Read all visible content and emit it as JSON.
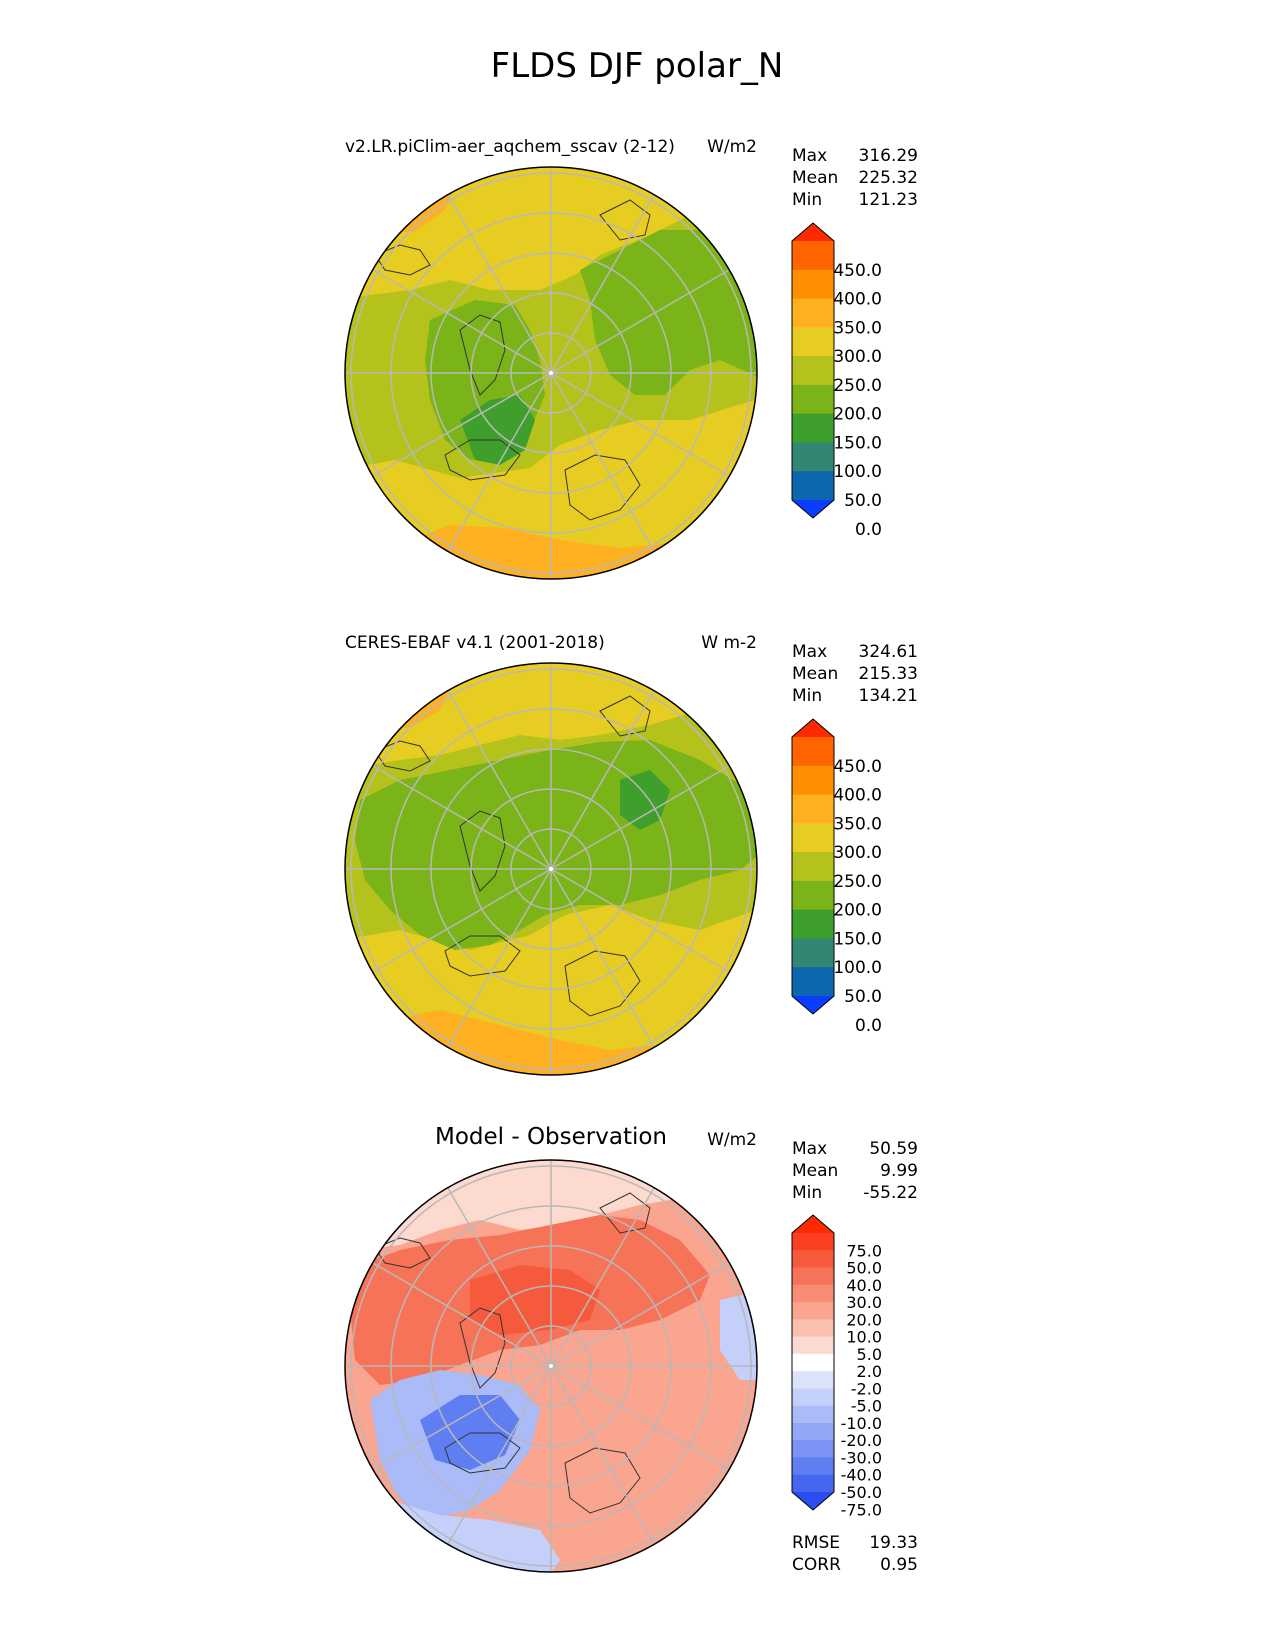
{
  "figure_title": "FLDS DJF polar_N",
  "panels": [
    {
      "id": "model",
      "left_title": "v2.LR.piClim-aer_aqchem_sscav (2-12)",
      "right_title": "W/m2",
      "center_title": "",
      "stats": [
        {
          "label": "Max",
          "value": "316.29"
        },
        {
          "label": "Mean",
          "value": "225.32"
        },
        {
          "label": "Min",
          "value": "121.23"
        }
      ],
      "colorbar": {
        "ticks": [
          "450.0",
          "400.0",
          "350.0",
          "300.0",
          "250.0",
          "200.0",
          "150.0",
          "100.0",
          "50.0",
          "0.0"
        ],
        "colors": [
          "#ff2a00",
          "#ff6400",
          "#ff8f00",
          "#ffb020",
          "#e7cd22",
          "#b5c21c",
          "#7bb418",
          "#3f9f2c",
          "#338672",
          "#0b67b0",
          "#0b3cff"
        ]
      }
    },
    {
      "id": "obs",
      "left_title": "CERES-EBAF v4.1 (2001-2018)",
      "right_title": "W m-2",
      "center_title": "",
      "stats": [
        {
          "label": "Max",
          "value": "324.61"
        },
        {
          "label": "Mean",
          "value": "215.33"
        },
        {
          "label": "Min",
          "value": "134.21"
        }
      ],
      "colorbar": {
        "ticks": [
          "450.0",
          "400.0",
          "350.0",
          "300.0",
          "250.0",
          "200.0",
          "150.0",
          "100.0",
          "50.0",
          "0.0"
        ],
        "colors": [
          "#ff2a00",
          "#ff6400",
          "#ff8f00",
          "#ffb020",
          "#e7cd22",
          "#b5c21c",
          "#7bb418",
          "#3f9f2c",
          "#338672",
          "#0b67b0",
          "#0b3cff"
        ]
      }
    },
    {
      "id": "diff",
      "left_title": "",
      "right_title": "W/m2",
      "center_title": "Model - Observation",
      "stats": [
        {
          "label": "Max",
          "value": "50.59"
        },
        {
          "label": "Mean",
          "value": "9.99"
        },
        {
          "label": "Min",
          "value": "-55.22"
        }
      ],
      "extra_stats": [
        {
          "label": "RMSE",
          "value": "19.33"
        },
        {
          "label": "CORR",
          "value": "0.95"
        }
      ],
      "colorbar": {
        "ticks": [
          "75.0",
          "50.0",
          "40.0",
          "30.0",
          "20.0",
          "10.0",
          "5.0",
          "2.0",
          "-2.0",
          "-5.0",
          "-10.0",
          "-20.0",
          "-30.0",
          "-40.0",
          "-50.0",
          "-75.0"
        ],
        "colors": [
          "#ff2a00",
          "#fa4020",
          "#f65a3c",
          "#f77358",
          "#f88c74",
          "#f9a590",
          "#fbbfad",
          "#fddad0",
          "#ffffff",
          "#dbe3fb",
          "#c4d0fa",
          "#abbbf8",
          "#92a7f6",
          "#7a93f4",
          "#5f7ef2",
          "#4466f0",
          "#2a4ef0"
        ]
      }
    }
  ],
  "palette": {
    "grid": "#b8b8b8",
    "coast": "#333333"
  }
}
